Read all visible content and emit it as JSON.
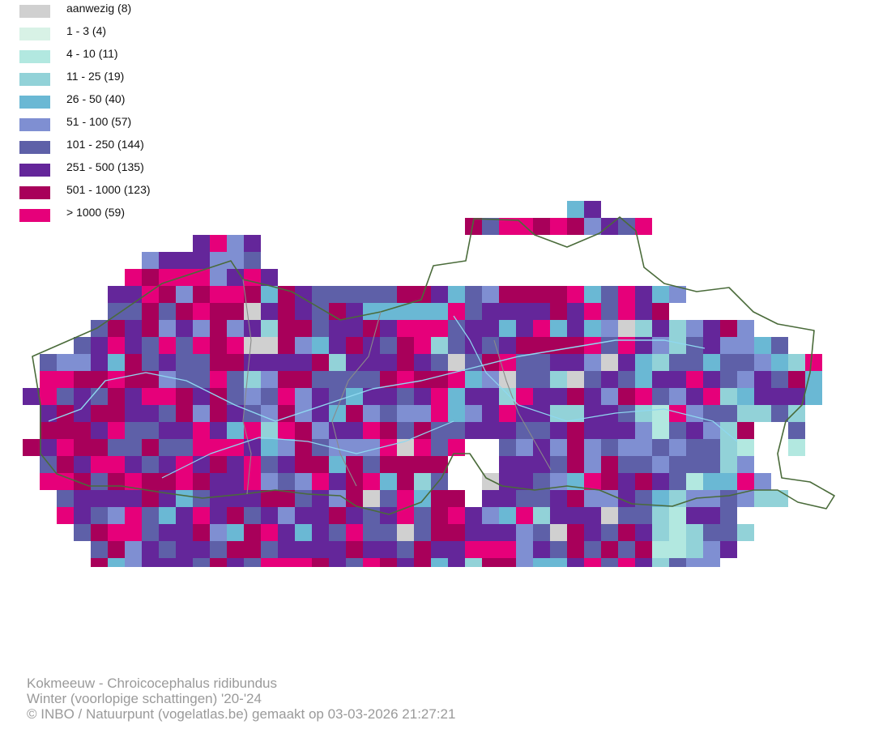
{
  "legend": {
    "items": [
      {
        "label": "aanwezig (8)",
        "color": "#d0d0d0"
      },
      {
        "label": "1 - 3 (4)",
        "color": "#d8f2e6"
      },
      {
        "label": "4 - 10 (11)",
        "color": "#b2e8e0"
      },
      {
        "label": "11 - 25 (19)",
        "color": "#92d2d8"
      },
      {
        "label": "26 - 50 (40)",
        "color": "#6ab8d4"
      },
      {
        "label": "51 - 100 (57)",
        "color": "#7f8fd2"
      },
      {
        "label": "101 - 250 (144)",
        "color": "#5e60a8"
      },
      {
        "label": "251 - 500 (135)",
        "color": "#64269a"
      },
      {
        "label": "501 - 1000 (123)",
        "color": "#a8005a"
      },
      {
        "label": "> 1000 (59)",
        "color": "#e6007a"
      }
    ]
  },
  "map": {
    "boundary_color": "#4a6b3a",
    "river_color": "#8fd8f0",
    "province_color": "#8a8a8a"
  },
  "footer": {
    "line1": "Kokmeeuw - Chroicocephalus ridibundus",
    "line2": "Winter (voorlopige schattingen) '20-'24",
    "line3": "© INBO / Natuurpunt (vogelatlas.be) gemaakt op 03-03-2026 21:27:21"
  }
}
